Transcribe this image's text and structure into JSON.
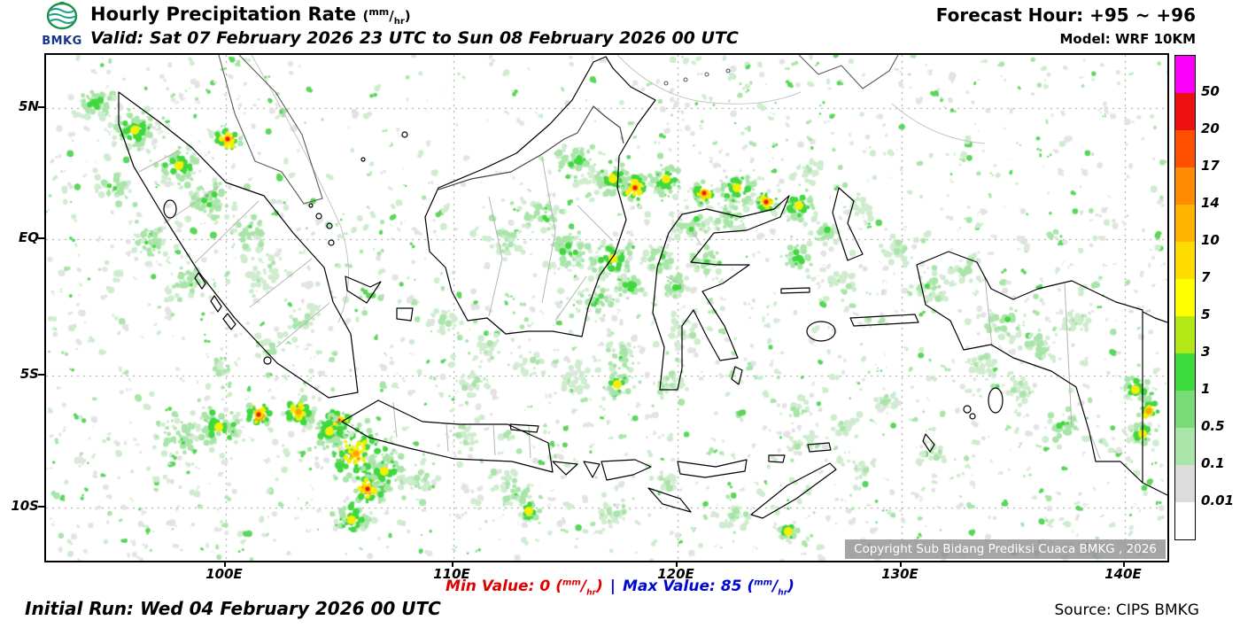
{
  "header": {
    "logo_text": "BMKG",
    "title": "Hourly Precipitation Rate",
    "unit_num": "mm",
    "unit_den": "hr",
    "valid_line": "Valid: Sat 07 February 2026 23 UTC to Sun 08 February 2026 00 UTC",
    "forecast_hour": "Forecast Hour: +95 ~ +96",
    "model": "Model: WRF 10KM"
  },
  "map": {
    "lat_labels": [
      "5N",
      "EQ",
      "5S",
      "10S"
    ],
    "lon_labels": [
      "100E",
      "110E",
      "120E",
      "130E",
      "140E"
    ],
    "copyright": "Copyright Sub Bidang Prediksi Cuaca BMKG , 2026"
  },
  "legend": {
    "boundaries": [
      "50",
      "20",
      "17",
      "14",
      "10",
      "7",
      "5",
      "3",
      "1",
      "0.5",
      "0.1",
      "0.01"
    ],
    "colors": [
      "#FA00FA",
      "#EC1010",
      "#FF5000",
      "#FF8C00",
      "#FFB400",
      "#FFDC00",
      "#FFFF00",
      "#B4E814",
      "#3CDC3C",
      "#78DC78",
      "#AAE6AA",
      "#DCDCDC",
      "#FFFFFF"
    ]
  },
  "footer": {
    "initial_run": "Initial Run: Wed 04 February 2026 00 UTC",
    "min_label": "Min Value:",
    "min_value": "0",
    "separator": "|",
    "max_label": "Max Value:",
    "max_value": "85",
    "source": "Source: CIPS BMKG"
  }
}
